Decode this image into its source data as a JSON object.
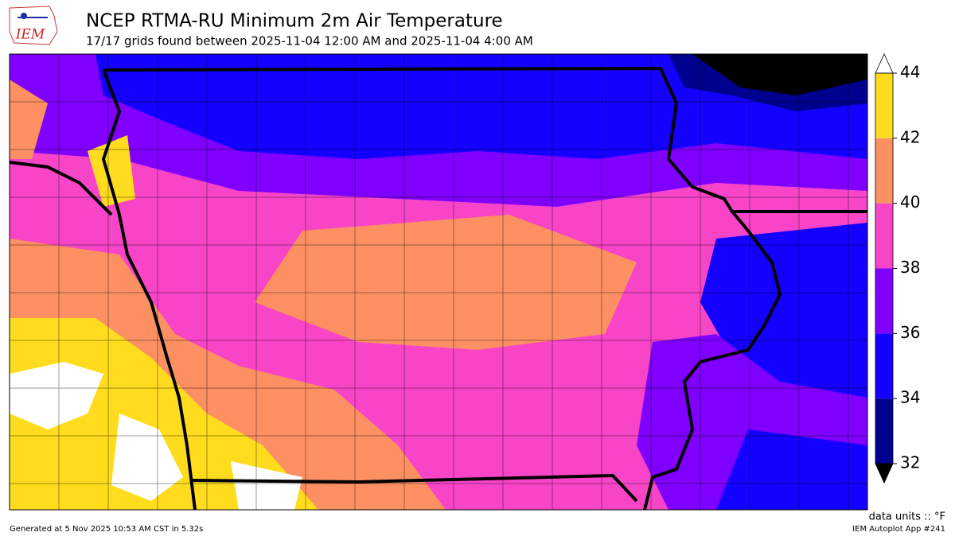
{
  "header": {
    "logo": "IEM",
    "title": "NCEP RTMA-RU Minimum 2m Air Temperature",
    "subtitle": "17/17 grids found between 2025-11-04 12:00 AM and 2025-11-04 4:00 AM"
  },
  "colorbar": {
    "ticks": [
      32,
      34,
      36,
      38,
      40,
      42,
      44
    ],
    "colors": [
      "#00008f",
      "#1400ff",
      "#8000ff",
      "#f845c8",
      "#fd9062",
      "#ffdc1e"
    ],
    "over_color": "#ffffff",
    "under_color": "#000000",
    "units": "data units :: °F"
  },
  "footer": {
    "generated": "Generated at 5 Nov 2025 10:53 AM CST in 5.32s",
    "app": "IEM Autoplot App #241"
  }
}
